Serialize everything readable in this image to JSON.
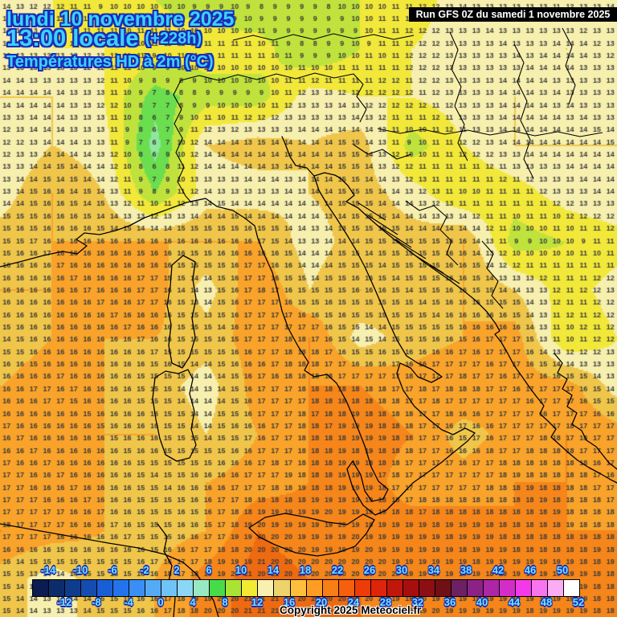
{
  "header": {
    "date_line": "lundi 10 novembre 2025",
    "time_line": "13:00 locale",
    "offset_badge": "(+228h)",
    "variable_line": "Températures HD à 2m (°C)",
    "text_color": "#3ad2ff",
    "outline_color": "#1a2cb8"
  },
  "run_box": {
    "label": "Run GFS 0Z du samedi 1 novembre 2025",
    "bg": "#000000",
    "fg": "#ffffff"
  },
  "copyright": "Copyright 2025 Meteociel.fr",
  "colorbar": {
    "min": -16,
    "max": 52,
    "step": 2,
    "labels_above": [
      -14,
      -10,
      -6,
      -2,
      2,
      6,
      10,
      14,
      18,
      22,
      26,
      30,
      34,
      38,
      42,
      46,
      50
    ],
    "labels_below": [
      -12,
      -8,
      -4,
      0,
      4,
      8,
      12,
      16,
      20,
      24,
      28,
      32,
      36,
      40,
      44,
      48,
      52
    ],
    "label_color": "#6fe6ff",
    "colors": [
      "#0a1c50",
      "#0d2c6c",
      "#103c8c",
      "#144cb0",
      "#1a5ed6",
      "#2374ec",
      "#3a8ef5",
      "#55aaf6",
      "#70c3f7",
      "#8bd7f5",
      "#99e8c4",
      "#47dc47",
      "#a9e435",
      "#f2ea33",
      "#f7f0ae",
      "#ecd36c",
      "#ffbf3b",
      "#ff9d23",
      "#f87f15",
      "#f55f0e",
      "#ee3c09",
      "#dc2509",
      "#c0170b",
      "#a60f0e",
      "#8c1013",
      "#701016",
      "#6d2064",
      "#8b2386",
      "#ac26a6",
      "#d32dc7",
      "#f23ae8",
      "#f974ef",
      "#fbacf5",
      "#ffffff"
    ]
  },
  "chart_data": {
    "type": "heatmap",
    "title": "Températures HD à 2m (°C)",
    "units": "°C",
    "grid_x_step": 64,
    "grid_y_step": 60,
    "temps": [
      [
        13,
        12,
        10,
        10,
        9,
        8,
        9,
        10,
        11,
        13,
        13,
        12,
        14
      ],
      [
        13,
        12,
        12,
        11,
        11,
        11,
        8,
        10,
        12,
        13,
        13,
        14,
        13
      ],
      [
        14,
        14,
        12,
        7,
        9,
        9,
        13,
        12,
        12,
        13,
        14,
        13,
        13
      ],
      [
        12,
        14,
        13,
        5,
        14,
        15,
        14,
        15,
        9,
        12,
        14,
        14,
        14
      ],
      [
        13,
        16,
        14,
        8,
        13,
        13,
        14,
        15,
        13,
        10,
        11,
        13,
        14
      ],
      [
        15,
        16,
        16,
        16,
        16,
        16,
        13,
        15,
        15,
        16,
        9,
        10,
        11
      ],
      [
        16,
        16,
        16,
        17,
        13,
        18,
        14,
        16,
        15,
        16,
        14,
        11,
        13
      ],
      [
        15,
        16,
        16,
        16,
        15,
        17,
        18,
        13,
        15,
        16,
        17,
        10,
        12
      ],
      [
        16,
        17,
        16,
        15,
        13,
        17,
        18,
        18,
        17,
        18,
        17,
        17,
        13
      ],
      [
        16,
        16,
        16,
        16,
        14,
        16,
        18,
        19,
        18,
        15,
        17,
        18,
        17
      ],
      [
        17,
        16,
        16,
        15,
        16,
        17,
        18,
        19,
        17,
        17,
        18,
        18,
        17
      ],
      [
        18,
        17,
        16,
        15,
        16,
        20,
        19,
        19,
        19,
        19,
        18,
        18,
        18
      ],
      [
        15,
        13,
        15,
        16,
        19,
        21,
        20,
        20,
        19,
        19,
        19,
        19,
        18
      ]
    ],
    "band_min": -16,
    "band_size": 2,
    "band_palette": [
      "#0a1c50",
      "#0d2c6c",
      "#103c8c",
      "#144cb0",
      "#1a5ed6",
      "#2374ec",
      "#3a8ef5",
      "#55aaf6",
      "#7cd4ec",
      "#7fe3cc",
      "#8fe69e",
      "#6ade4e",
      "#bfe33c",
      "#f2e83a",
      "#f6efae",
      "#f0c64a",
      "#f9a32a",
      "#f6861a",
      "#ee6a10",
      "#e44f0a",
      "#ee3c09",
      "#dc2509",
      "#c0170b",
      "#a60f0e",
      "#8c1013",
      "#701016",
      "#6d2064",
      "#8b2386",
      "#ac26a6",
      "#d32dc7",
      "#f23ae8",
      "#f974ef",
      "#fbacf5",
      "#ffffff"
    ],
    "number_color": "#3a3a3a",
    "number_cols": 46,
    "number_rows": 50
  }
}
